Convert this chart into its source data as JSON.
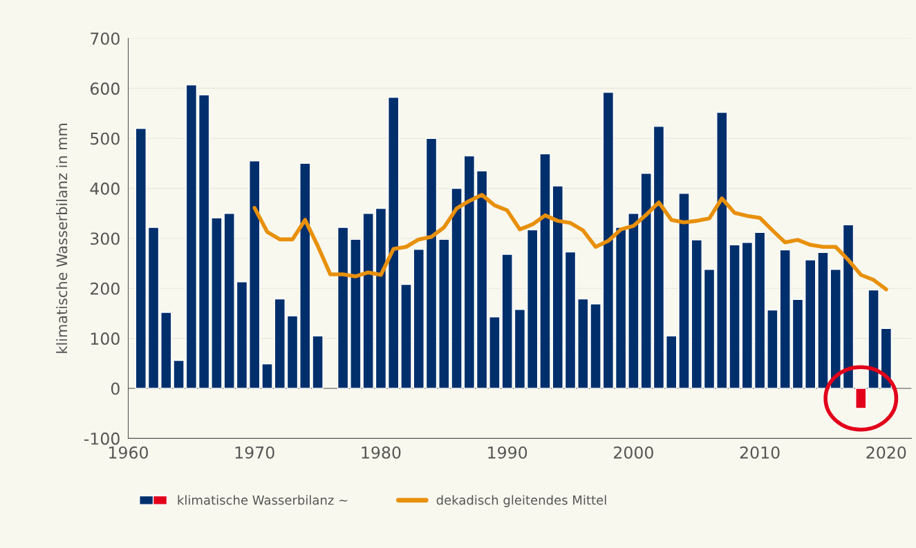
{
  "chart_data": {
    "type": "bar",
    "ylabel": "klimatische Wasserbilanz in mm",
    "x": [
      1961,
      1962,
      1963,
      1964,
      1965,
      1966,
      1967,
      1968,
      1969,
      1970,
      1971,
      1972,
      1973,
      1974,
      1975,
      1976,
      1977,
      1978,
      1979,
      1980,
      1981,
      1982,
      1983,
      1984,
      1985,
      1986,
      1987,
      1988,
      1989,
      1990,
      1991,
      1992,
      1993,
      1994,
      1995,
      1996,
      1997,
      1998,
      1999,
      2000,
      2001,
      2002,
      2003,
      2004,
      2005,
      2006,
      2007,
      2008,
      2009,
      2010,
      2011,
      2012,
      2013,
      2014,
      2015,
      2016,
      2017,
      2018,
      2019,
      2020
    ],
    "series": [
      {
        "name": "klimatische Wasserbilanz ~",
        "colors": [
          "#002f6c",
          "#002f6c",
          "#002f6c",
          "#002f6c",
          "#002f6c",
          "#002f6c",
          "#002f6c",
          "#002f6c",
          "#002f6c",
          "#002f6c",
          "#002f6c",
          "#002f6c",
          "#002f6c",
          "#002f6c",
          "#002f6c",
          "#002f6c",
          "#002f6c",
          "#002f6c",
          "#002f6c",
          "#002f6c",
          "#002f6c",
          "#002f6c",
          "#002f6c",
          "#002f6c",
          "#002f6c",
          "#002f6c",
          "#002f6c",
          "#002f6c",
          "#002f6c",
          "#002f6c",
          "#002f6c",
          "#002f6c",
          "#002f6c",
          "#002f6c",
          "#002f6c",
          "#002f6c",
          "#002f6c",
          "#002f6c",
          "#002f6c",
          "#002f6c",
          "#002f6c",
          "#002f6c",
          "#002f6c",
          "#002f6c",
          "#002f6c",
          "#002f6c",
          "#002f6c",
          "#002f6c",
          "#002f6c",
          "#002f6c",
          "#002f6c",
          "#002f6c",
          "#002f6c",
          "#002f6c",
          "#002f6c",
          "#002f6c",
          "#002f6c",
          "#e2001a",
          "#002f6c",
          "#002f6c"
        ],
        "values": [
          520,
          322,
          152,
          56,
          607,
          587,
          341,
          350,
          213,
          455,
          49,
          179,
          145,
          450,
          105,
          null,
          322,
          298,
          350,
          360,
          582,
          208,
          278,
          500,
          298,
          400,
          465,
          435,
          143,
          268,
          158,
          317,
          469,
          405,
          273,
          179,
          169,
          592,
          322,
          350,
          430,
          524,
          105,
          390,
          297,
          238,
          552,
          287,
          292,
          312,
          157,
          277,
          178,
          257,
          272,
          238,
          327,
          -40,
          197,
          120
        ]
      },
      {
        "type": "line",
        "name": "dekadisch gleitendes Mittel",
        "color": "#e8900c",
        "x": [
          1970,
          1971,
          1972,
          1973,
          1974,
          1975,
          1976,
          1977,
          1978,
          1979,
          1980,
          1981,
          1982,
          1983,
          1984,
          1985,
          1986,
          1987,
          1988,
          1989,
          1990,
          1991,
          1992,
          1993,
          1994,
          1995,
          1996,
          1997,
          1998,
          1999,
          2000,
          2001,
          2002,
          2003,
          2004,
          2005,
          2006,
          2007,
          2008,
          2009,
          2010,
          2011,
          2012,
          2013,
          2014,
          2015,
          2016,
          2017,
          2018,
          2019,
          2020
        ],
        "values": [
          361,
          313,
          298,
          298,
          337,
          285,
          228,
          228,
          224,
          232,
          227,
          279,
          283,
          298,
          303,
          322,
          360,
          375,
          387,
          366,
          356,
          318,
          328,
          346,
          335,
          331,
          316,
          283,
          295,
          318,
          325,
          347,
          372,
          337,
          332,
          335,
          340,
          380,
          351,
          345,
          341,
          316,
          292,
          297,
          287,
          283,
          283,
          257,
          227,
          217,
          198
        ]
      }
    ],
    "xlim": [
      1960,
      2022
    ],
    "xticks": [
      1960,
      1970,
      1980,
      1990,
      2000,
      2010,
      2020
    ],
    "ylim": [
      -100,
      700
    ],
    "yticks": [
      -100,
      0,
      100,
      200,
      300,
      400,
      500,
      600,
      700
    ],
    "grid": "y",
    "legend": "bottom left"
  }
}
